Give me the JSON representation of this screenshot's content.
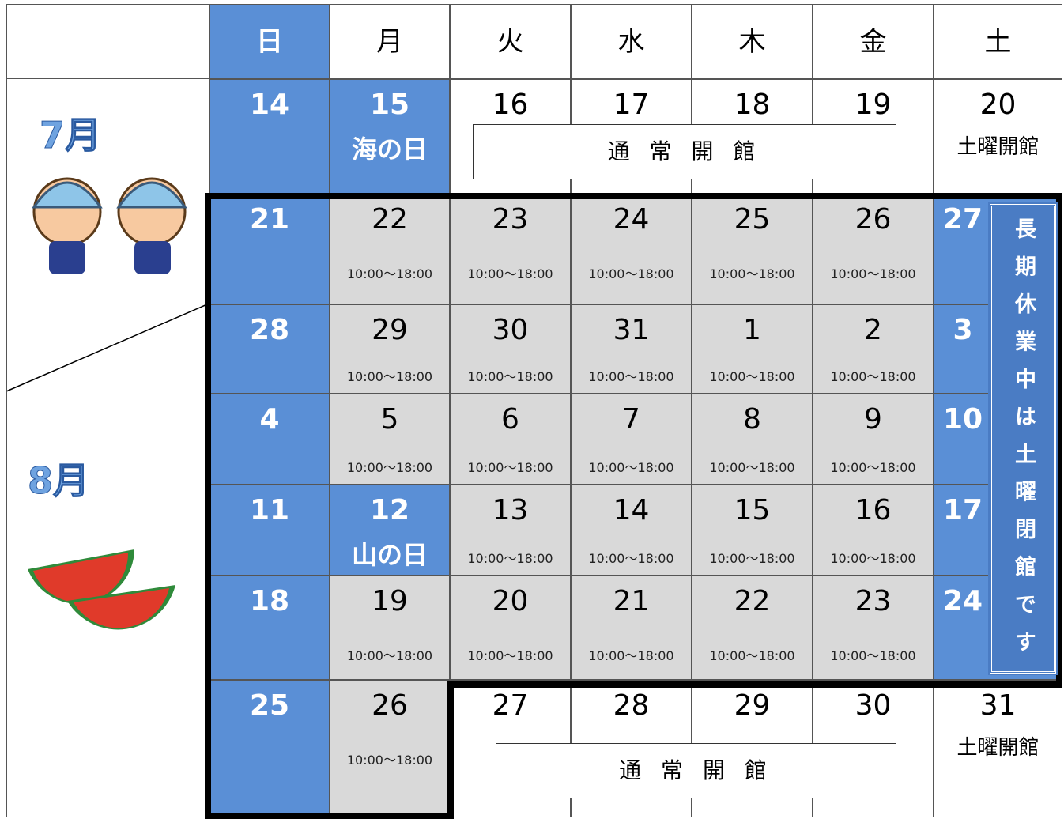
{
  "header": {
    "days": [
      "日",
      "月",
      "火",
      "水",
      "木",
      "金",
      "土"
    ]
  },
  "months": [
    "7月",
    "8月"
  ],
  "notice": "長期休業中は土曜閉館です",
  "weeks": [
    {
      "cells": [
        {
          "day": 14
        },
        {
          "day": 15,
          "note": "海の日"
        },
        {
          "day": 16
        },
        {
          "day": 17
        },
        {
          "day": 18
        },
        {
          "day": 19
        },
        {
          "day": 20,
          "note": "土曜開館"
        }
      ],
      "banner": "通 常 開 館"
    },
    {
      "cells": [
        {
          "day": 21
        },
        {
          "day": 22,
          "hours": "10:00～18:00"
        },
        {
          "day": 23,
          "hours": "10:00～18:00"
        },
        {
          "day": 24,
          "hours": "10:00～18:00"
        },
        {
          "day": 25,
          "hours": "10:00～18:00"
        },
        {
          "day": 26,
          "hours": "10:00～18:00"
        },
        {
          "day": 27
        }
      ]
    },
    {
      "cells": [
        {
          "day": 28
        },
        {
          "day": 29,
          "hours": "10:00～18:00"
        },
        {
          "day": 30,
          "hours": "10:00～18:00"
        },
        {
          "day": 31,
          "hours": "10:00～18:00"
        },
        {
          "day": 1,
          "hours": "10:00～18:00"
        },
        {
          "day": 2,
          "hours": "10:00～18:00"
        },
        {
          "day": 3
        }
      ]
    },
    {
      "cells": [
        {
          "day": 4
        },
        {
          "day": 5,
          "hours": "10:00～18:00"
        },
        {
          "day": 6,
          "hours": "10:00～18:00"
        },
        {
          "day": 7,
          "hours": "10:00～18:00"
        },
        {
          "day": 8,
          "hours": "10:00～18:00"
        },
        {
          "day": 9,
          "hours": "10:00～18:00"
        },
        {
          "day": 10
        }
      ]
    },
    {
      "cells": [
        {
          "day": 11
        },
        {
          "day": 12,
          "note": "山の日"
        },
        {
          "day": 13,
          "hours": "10:00～18:00"
        },
        {
          "day": 14,
          "hours": "10:00～18:00"
        },
        {
          "day": 15,
          "hours": "10:00～18:00"
        },
        {
          "day": 16,
          "hours": "10:00～18:00"
        },
        {
          "day": 17
        }
      ]
    },
    {
      "cells": [
        {
          "day": 18
        },
        {
          "day": 19,
          "hours": "10:00～18:00"
        },
        {
          "day": 20,
          "hours": "10:00～18:00"
        },
        {
          "day": 21,
          "hours": "10:00～18:00"
        },
        {
          "day": 22,
          "hours": "10:00～18:00"
        },
        {
          "day": 23,
          "hours": "10:00～18:00"
        },
        {
          "day": 24
        }
      ]
    },
    {
      "cells": [
        {
          "day": 25
        },
        {
          "day": 26,
          "hours": "10:00～18:00"
        },
        {
          "day": 27
        },
        {
          "day": 28
        },
        {
          "day": 29
        },
        {
          "day": 30
        },
        {
          "day": 31,
          "note": "土曜開館"
        }
      ],
      "banner": "通 常 開 館"
    }
  ]
}
